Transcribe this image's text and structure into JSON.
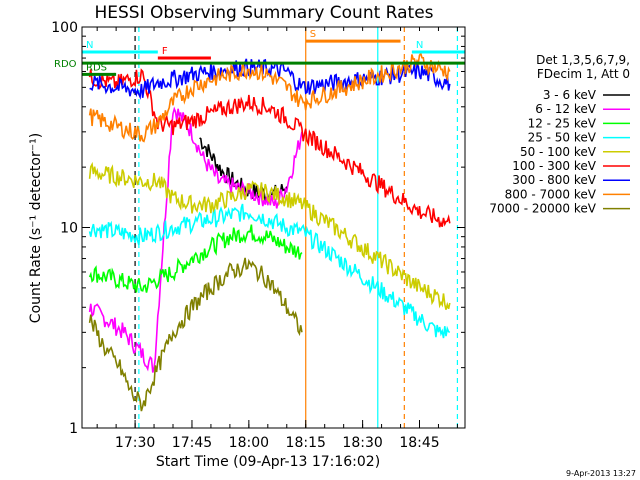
{
  "chart_data": {
    "type": "line",
    "title": "HESSI Observing Summary Count Rates",
    "xlabel": "Start Time (09-Apr-13 17:16:02)",
    "ylabel": "Count Rate (s⁻¹ detector⁻¹)",
    "yscale": "log",
    "xlim": [
      "17:16",
      "18:57"
    ],
    "ylim": [
      1,
      100
    ],
    "x_ticks": [
      "17:30",
      "17:45",
      "18:00",
      "18:15",
      "18:30",
      "18:45"
    ],
    "y_ticks": [
      "1",
      "10",
      "100"
    ],
    "legend_header": [
      "Det 1,3,5,6,7,9,",
      "FDecim 1, Att 0"
    ],
    "legend_position": "right",
    "series": [
      {
        "name": "3 - 6 keV",
        "color": "#000000",
        "x": [
          "17:47",
          "17:50",
          "17:53",
          "17:56",
          "17:59",
          "18:02",
          "18:05",
          "18:08",
          "18:10"
        ],
        "y": [
          28,
          23,
          19,
          17,
          15.5,
          15,
          14.5,
          15,
          16
        ]
      },
      {
        "name": "6 - 12 keV",
        "color": "#ff00ff",
        "x": [
          "17:18",
          "17:27",
          "17:35",
          "17:40",
          "17:45",
          "17:48",
          "17:52",
          "17:56",
          "18:00",
          "18:04",
          "18:07",
          "18:10",
          "18:13",
          "18:14"
        ],
        "y": [
          4,
          3,
          2,
          40,
          30,
          22,
          17,
          16,
          15,
          14,
          13,
          16,
          25,
          30
        ]
      },
      {
        "name": "12 - 25 keV",
        "color": "#00ff00",
        "x": [
          "17:18",
          "17:25",
          "17:32",
          "17:36",
          "17:40",
          "17:45",
          "17:50",
          "17:55",
          "18:00",
          "18:05",
          "18:10",
          "18:14"
        ],
        "y": [
          6,
          5.5,
          5,
          5.5,
          6,
          7,
          8,
          9,
          9.5,
          9,
          8,
          7.5
        ]
      },
      {
        "name": "25 - 50 keV",
        "color": "#00ffff",
        "x": [
          "17:18",
          "17:25",
          "17:32",
          "17:36",
          "17:40",
          "17:45",
          "17:50",
          "17:55",
          "18:00",
          "18:05",
          "18:10",
          "18:14",
          "18:45",
          "18:50",
          "18:53"
        ],
        "y": [
          10,
          9.5,
          9,
          9.5,
          10,
          10.5,
          11,
          11.5,
          12,
          11,
          10,
          9.5,
          3.5,
          3,
          3
        ]
      },
      {
        "name": "50 - 100 keV",
        "color": "#cccc00",
        "x": [
          "17:18",
          "17:25",
          "17:32",
          "17:36",
          "17:40",
          "17:45",
          "17:50",
          "17:55",
          "18:00",
          "18:05",
          "18:10",
          "18:14",
          "18:45",
          "18:50",
          "18:53"
        ],
        "y": [
          19,
          18,
          17,
          17,
          14,
          13,
          13,
          14,
          15.5,
          15,
          14,
          13,
          5,
          4.5,
          4.2
        ]
      },
      {
        "name": "100 - 300 keV",
        "color": "#ff0000",
        "x": [
          "17:18",
          "17:25",
          "17:32",
          "17:36",
          "17:40",
          "17:45",
          "17:50",
          "17:55",
          "18:00",
          "18:05",
          "18:10",
          "18:14",
          "18:45",
          "18:50",
          "18:53"
        ],
        "y": [
          56,
          52,
          58,
          33,
          32,
          34,
          37,
          40,
          42,
          40,
          35,
          30,
          12,
          11,
          10.5
        ]
      },
      {
        "name": "300 - 800 keV",
        "color": "#0000ff",
        "x": [
          "17:18",
          "17:25",
          "17:32",
          "17:36",
          "17:40",
          "17:45",
          "17:50",
          "17:55",
          "18:00",
          "18:05",
          "18:10",
          "18:14",
          "18:45",
          "18:50",
          "18:53"
        ],
        "y": [
          53,
          50,
          48,
          53,
          55,
          58,
          60,
          62,
          63,
          62,
          60,
          50,
          60,
          55,
          52
        ]
      },
      {
        "name": "800 - 7000 keV",
        "color": "#ff8000",
        "x": [
          "17:18",
          "17:25",
          "17:32",
          "17:36",
          "17:40",
          "17:45",
          "17:50",
          "17:55",
          "18:00",
          "18:05",
          "18:10",
          "18:14",
          "18:45",
          "18:50",
          "18:53"
        ],
        "y": [
          36,
          32,
          29,
          33,
          42,
          50,
          55,
          58,
          62,
          58,
          50,
          42,
          68,
          62,
          60
        ]
      },
      {
        "name": "7000 - 20000 keV",
        "color": "#808000",
        "x": [
          "17:18",
          "17:22",
          "17:26",
          "17:29",
          "17:32",
          "17:36",
          "17:40",
          "17:45",
          "17:50",
          "17:55",
          "18:00",
          "18:05",
          "18:10",
          "18:14"
        ],
        "y": [
          3.5,
          2.5,
          2,
          1.5,
          1.3,
          2,
          3,
          4,
          5,
          6,
          6.5,
          5.5,
          4,
          3
        ]
      }
    ],
    "flags": [
      {
        "label": "N",
        "color": "#00ffff",
        "x0": "17:16",
        "x1": "17:36",
        "y": 75
      },
      {
        "label": "N",
        "color": "#00ffff",
        "x0": "18:43",
        "x1": "18:57",
        "y": 75
      },
      {
        "label": "F",
        "color": "#ff0000",
        "x0": "17:36",
        "x1": "17:50",
        "y": 70
      },
      {
        "label": "S",
        "color": "#ff8000",
        "x0": "18:15",
        "x1": "18:40",
        "y": 85
      },
      {
        "label": "RDO",
        "color": "#008000",
        "x0": "17:16",
        "x1": "18:57",
        "y": 66
      },
      {
        "label": "RDS",
        "color": "#008000",
        "x0": "17:16",
        "x1": "17:25",
        "y": 58
      }
    ],
    "vlines": [
      {
        "x": "17:31",
        "color": "#00ffff",
        "style": "dashed"
      },
      {
        "x": "17:30",
        "color": "#000000",
        "style": "dashed"
      },
      {
        "x": "18:15",
        "color": "#ff8000",
        "style": "solid"
      },
      {
        "x": "18:34",
        "color": "#00ffff",
        "style": "solid"
      },
      {
        "x": "18:41",
        "color": "#ff8000",
        "style": "dashed"
      },
      {
        "x": "18:55",
        "color": "#00ffff",
        "style": "dashed"
      }
    ],
    "date_stamp": "9-Apr-2013 13:27"
  }
}
